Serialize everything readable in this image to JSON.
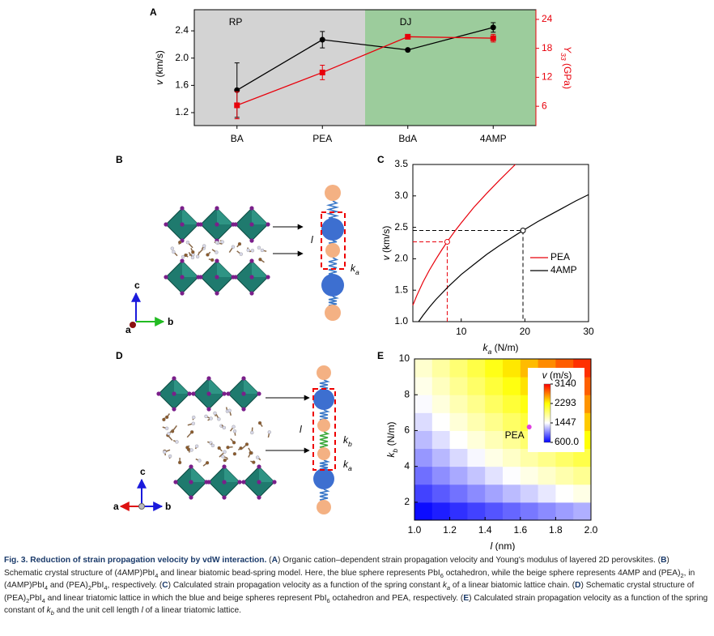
{
  "panels": [
    "A",
    "B",
    "C",
    "D",
    "E"
  ],
  "chart_data": [
    {
      "type": "line",
      "categories": [
        "BA",
        "PEA",
        "BdA",
        "4AMP"
      ],
      "ylabel": [
        {
          "text": "v",
          "style": "i"
        },
        {
          "text": " (km/s)"
        }
      ],
      "y2label": [
        {
          "text": "Y",
          "style": "i"
        },
        {
          "text": "33",
          "style": "sub"
        },
        {
          "text": " (GPa)"
        }
      ],
      "ylim": [
        1.01,
        2.71
      ],
      "yticks": [
        1.2,
        1.6,
        {
          "value": 2,
          "label": "2.0"
        },
        2.4
      ],
      "y2lim": [
        2,
        26
      ],
      "y2ticks": [
        6,
        12,
        18,
        24
      ],
      "regions": [
        {
          "label": "RP",
          "from": "BA",
          "to": "PEA",
          "color": "#d3d3d3"
        },
        {
          "label": "DJ",
          "from": "BdA",
          "to": "4AMP",
          "color": "#9ccc9c"
        }
      ],
      "series": [
        {
          "color": "#000000",
          "marker": "circle",
          "values": [
            1.53,
            2.27,
            2.12,
            2.45
          ],
          "errors": [
            0.4,
            0.12,
            null,
            0.07
          ]
        },
        {
          "color": "#e8000b",
          "marker": "square",
          "axis": "y2",
          "values": [
            6.2,
            13,
            20.4,
            20.1
          ],
          "errors": [
            2.8,
            1.5,
            null,
            0.8
          ]
        }
      ]
    },
    {
      "type": "line",
      "xlabel": [
        {
          "text": "k",
          "style": "i"
        },
        {
          "text": "a",
          "style": "sub"
        },
        {
          "text": " (N/m)"
        }
      ],
      "ylabel": [
        {
          "text": "v",
          "style": "i"
        },
        {
          "text": " (km/s)"
        }
      ],
      "xlim": [
        2.4,
        30
      ],
      "xticks": [
        10,
        20,
        30
      ],
      "ylim": [
        1,
        3.5
      ],
      "yticks": [
        {
          "value": 1,
          "label": "1.0"
        },
        1.5,
        {
          "value": 2,
          "label": "2.0"
        },
        2.5,
        {
          "value": 3,
          "label": "3.0"
        },
        3.5
      ],
      "legend": "right",
      "series": [
        {
          "name": "PEA",
          "color": "#e8000b",
          "x": [
            2.4,
            3,
            4,
            5,
            6,
            7,
            7.8,
            9,
            10,
            12,
            14,
            16,
            18.5
          ],
          "values": [
            1.26,
            1.41,
            1.63,
            1.82,
            1.99,
            2.15,
            2.27,
            2.44,
            2.57,
            2.82,
            3.04,
            3.25,
            3.5
          ]
        },
        {
          "name": "4AMP",
          "color": "#000000",
          "x": [
            3.3,
            4,
            5,
            6,
            8,
            10,
            12,
            14,
            16,
            18,
            19.7,
            22,
            24,
            26,
            28,
            30
          ],
          "values": [
            1,
            1.1,
            1.23,
            1.35,
            1.56,
            1.75,
            1.91,
            2.07,
            2.21,
            2.34,
            2.45,
            2.59,
            2.7,
            2.81,
            2.92,
            3.02
          ]
        }
      ],
      "highlights": [
        {
          "x": 7.8,
          "y": 2.27,
          "color": "#e8000b"
        },
        {
          "x": 19.7,
          "y": 2.45,
          "color": "#000000"
        }
      ]
    },
    {
      "type": "heatmap",
      "xlabel": [
        {
          "text": "l",
          "style": "i"
        },
        {
          "text": " (nm)"
        }
      ],
      "ylabel": [
        {
          "text": "k",
          "style": "i"
        },
        {
          "text": "b",
          "style": "sub"
        },
        {
          "text": " (N/m)"
        }
      ],
      "xlim": [
        1,
        2
      ],
      "xticks": [
        {
          "value": 1,
          "label": "1.0"
        },
        1.2,
        1.4,
        1.6,
        1.8,
        {
          "value": 2,
          "label": "2.0"
        }
      ],
      "ylim": [
        1,
        10
      ],
      "yticks": [
        2,
        4,
        6,
        8,
        10
      ],
      "x": [
        1.05,
        1.15,
        1.25,
        1.35,
        1.45,
        1.55,
        1.65,
        1.75,
        1.85,
        1.95
      ],
      "y": [
        1.5,
        2.5,
        3.5,
        4.5,
        5.5,
        6.5,
        7.5,
        8.5,
        9.5
      ],
      "z": [
        [
          640,
          700,
          760,
          820,
          880,
          940,
          1000,
          1060,
          1120,
          1180
        ],
        [
          820,
          900,
          980,
          1060,
          1140,
          1220,
          1290,
          1370,
          1450,
          1530
        ],
        [
          970,
          1070,
          1160,
          1250,
          1350,
          1440,
          1530,
          1620,
          1720,
          1810
        ],
        [
          1100,
          1210,
          1320,
          1420,
          1530,
          1630,
          1740,
          1840,
          1950,
          2050
        ],
        [
          1220,
          1340,
          1450,
          1570,
          1690,
          1800,
          1920,
          2040,
          2150,
          2270
        ],
        [
          1330,
          1450,
          1580,
          1710,
          1830,
          1960,
          2090,
          2210,
          2340,
          2470
        ],
        [
          1430,
          1560,
          1700,
          1830,
          1970,
          2110,
          2240,
          2380,
          2510,
          2650
        ],
        [
          1520,
          1660,
          1810,
          1950,
          2100,
          2240,
          2390,
          2530,
          2670,
          2820
        ],
        [
          1610,
          1760,
          1910,
          2060,
          2220,
          2370,
          2520,
          2680,
          2830,
          2980
        ]
      ],
      "colorbar": {
        "title": [
          {
            "text": "v",
            "style": "i"
          },
          {
            "text": " (m/s)"
          }
        ],
        "zlim": [
          600,
          3140
        ],
        "ticks": [
          {
            "value": 600,
            "label": "600.0"
          },
          1447,
          2293,
          3140
        ],
        "colors": [
          "#0000ff",
          "#ffffff",
          "#ffff00",
          "#ff0000"
        ]
      },
      "point": {
        "label": "PEA",
        "x": 1.65,
        "y": 6.2,
        "color": "#e040e0"
      }
    }
  ],
  "panel_b": {
    "spacing": [
      {
        "text": "l",
        "style": "i"
      }
    ],
    "spring": [
      {
        "text": "k",
        "style": "i"
      },
      {
        "text": "a",
        "style": "sub"
      }
    ],
    "axes": [
      "c",
      "b",
      "a"
    ]
  },
  "panel_d": {
    "spacing": [
      {
        "text": "l",
        "style": "i"
      }
    ],
    "spring_b": [
      {
        "text": "k",
        "style": "i"
      },
      {
        "text": "b",
        "style": "sub"
      }
    ],
    "spring_a": [
      {
        "text": "k",
        "style": "i"
      },
      {
        "text": "a",
        "style": "sub"
      }
    ],
    "axes": [
      "c",
      "a",
      "b"
    ]
  },
  "caption": [
    {
      "text": "Fig. 3. Reduction of strain propagation velocity by vdW interaction.",
      "style": "b"
    },
    {
      "text": " ("
    },
    {
      "text": "A",
      "style": "b"
    },
    {
      "text": ") Organic cation–dependent strain propagation velocity and Young's modulus of layered 2D perovskites. ("
    },
    {
      "text": "B",
      "style": "b"
    },
    {
      "text": ") Schematic crystal structure of (4AMP)PbI"
    },
    {
      "text": "4",
      "style": "sub"
    },
    {
      "text": " and linear biatomic bead-spring model. Here, the blue sphere represents PbI"
    },
    {
      "text": "6",
      "style": "sub"
    },
    {
      "text": " octahedron, while the beige sphere represents 4AMP and (PEA)"
    },
    {
      "text": "2",
      "style": "sub"
    },
    {
      "text": ", in (4AMP)PbI"
    },
    {
      "text": "4",
      "style": "sub"
    },
    {
      "text": " and (PEA)"
    },
    {
      "text": "2",
      "style": "sub"
    },
    {
      "text": "PbI"
    },
    {
      "text": "4",
      "style": "sub"
    },
    {
      "text": ", respectively. ("
    },
    {
      "text": "C",
      "style": "b"
    },
    {
      "text": ") Calculated strain propagation velocity as a function of the spring constant "
    },
    {
      "text": "k",
      "style": "i"
    },
    {
      "text": "a",
      "style": "sub"
    },
    {
      "text": " of a linear biatomic lattice chain. ("
    },
    {
      "text": "D",
      "style": "b"
    },
    {
      "text": ") Schematic crystal structure of (PEA)"
    },
    {
      "text": "2",
      "style": "sub"
    },
    {
      "text": "PbI"
    },
    {
      "text": "4",
      "style": "sub"
    },
    {
      "text": " and linear triatomic lattice in which the blue and beige spheres represent PbI"
    },
    {
      "text": "6",
      "style": "sub"
    },
    {
      "text": " octahedron and PEA, respectively. ("
    },
    {
      "text": "E",
      "style": "b"
    },
    {
      "text": ") Calculated strain propagation velocity as a function of the spring constant of "
    },
    {
      "text": "k",
      "style": "i"
    },
    {
      "text": "b",
      "style": "sub"
    },
    {
      "text": " and the unit cell length "
    },
    {
      "text": "l",
      "style": "i"
    },
    {
      "text": " of a linear triatomic lattice."
    }
  ]
}
